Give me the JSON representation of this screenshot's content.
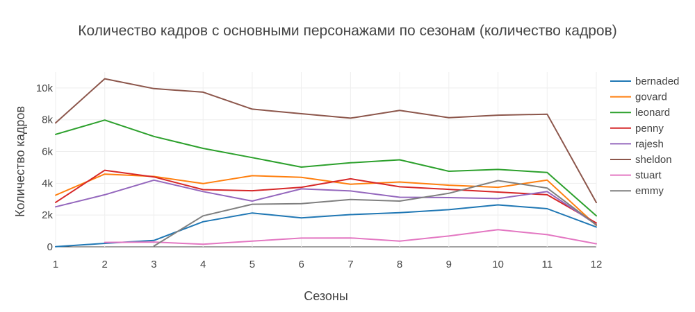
{
  "chart_data": {
    "type": "line",
    "title": "Количество кадров с основными персонажами по сезонам (количество кадров)",
    "xlabel": "Сезоны",
    "ylabel": "Количество кадров",
    "x": [
      1,
      2,
      3,
      4,
      5,
      6,
      7,
      8,
      9,
      10,
      11,
      12
    ],
    "x_tick_labels": [
      "1",
      "2",
      "3",
      "4",
      "5",
      "6",
      "7",
      "8",
      "9",
      "10",
      "11",
      "12"
    ],
    "xlim": [
      1,
      12
    ],
    "ylim": [
      0,
      11000
    ],
    "y_ticks": [
      0,
      2000,
      4000,
      6000,
      8000,
      10000
    ],
    "y_tick_labels": [
      "0",
      "2k",
      "4k",
      "6k",
      "8k",
      "10k"
    ],
    "grid": true,
    "legend_position": "right",
    "series": [
      {
        "name": "bernaded",
        "color": "#1f77b4",
        "values": [
          10,
          220,
          400,
          1580,
          2130,
          1820,
          2030,
          2150,
          2340,
          2640,
          2400,
          1250
        ]
      },
      {
        "name": "govard",
        "color": "#ff7f0e",
        "values": [
          3250,
          4580,
          4430,
          3980,
          4480,
          4380,
          3940,
          4080,
          3880,
          3750,
          4200,
          1350
        ]
      },
      {
        "name": "leonard",
        "color": "#2ca02c",
        "values": [
          7080,
          7980,
          6950,
          6200,
          5620,
          5020,
          5290,
          5480,
          4760,
          4870,
          4680,
          1950
        ]
      },
      {
        "name": "penny",
        "color": "#d62728",
        "values": [
          2800,
          4820,
          4400,
          3600,
          3530,
          3750,
          4280,
          3780,
          3620,
          3450,
          3280,
          1500
        ]
      },
      {
        "name": "rajesh",
        "color": "#9467bd",
        "values": [
          2520,
          3280,
          4200,
          3480,
          2880,
          3650,
          3520,
          3120,
          3100,
          3040,
          3480,
          1400
        ]
      },
      {
        "name": "sheldon",
        "color": "#8c564b",
        "values": [
          7800,
          10580,
          9960,
          9740,
          8670,
          8380,
          8100,
          8590,
          8130,
          8290,
          8350,
          2790
        ]
      },
      {
        "name": "stuart",
        "color": "#e377c2",
        "values": [
          null,
          280,
          300,
          160,
          360,
          550,
          560,
          360,
          680,
          1080,
          770,
          190
        ]
      },
      {
        "name": "emmy",
        "color": "#7f7f7f",
        "values": [
          null,
          null,
          50,
          1950,
          2680,
          2720,
          2980,
          2880,
          3370,
          4170,
          3700,
          1380
        ]
      }
    ]
  }
}
